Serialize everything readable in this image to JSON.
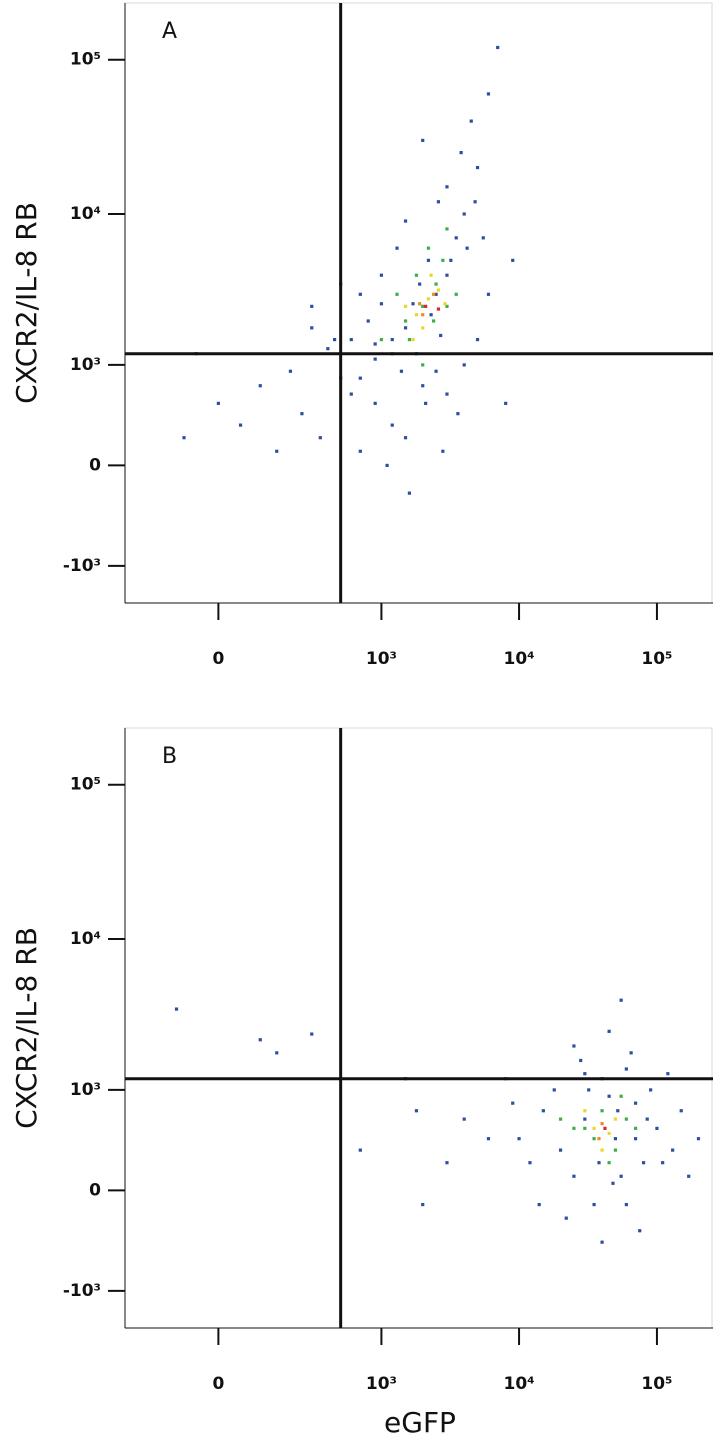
{
  "chart_data": [
    {
      "type": "scatter",
      "title": "A",
      "y_label": "CXCR2/IL-8 RB",
      "scale": "biexponential",
      "xlim": [
        -300,
        255000
      ],
      "ylim": [
        -1800,
        233000
      ],
      "xticks": [
        {
          "value": 0,
          "label": "0"
        },
        {
          "value": 1000,
          "label": "10³"
        },
        {
          "value": 10000,
          "label": "10⁴"
        },
        {
          "value": 100000,
          "label": "10⁵"
        }
      ],
      "yticks": [
        {
          "value": -1000,
          "label": "-10³"
        },
        {
          "value": 0,
          "label": "0"
        },
        {
          "value": 1000,
          "label": "10³"
        },
        {
          "value": 10000,
          "label": "10⁴"
        },
        {
          "value": 100000,
          "label": "10⁵"
        }
      ],
      "gates": {
        "x": 500,
        "y": 1200
      },
      "series": [
        {
          "color": "#2e4f9e",
          "x": [
            1200,
            1500,
            2500,
            3000,
            1800,
            900,
            800,
            2200,
            3500,
            4000,
            3000,
            5000,
            4500,
            6000,
            7000,
            2000,
            1500,
            1000,
            700,
            600,
            700,
            900,
            1200,
            1500,
            2000,
            2500,
            3000,
            4000,
            5000,
            6000,
            8000,
            1100,
            700,
            600,
            400,
            300,
            200,
            100,
            0,
            -50,
            50,
            150,
            250,
            350,
            450,
            -80,
            300,
            500,
            1300,
            2600,
            3800,
            1700,
            2300,
            2700,
            1400,
            900,
            1900,
            3200,
            4200,
            2100,
            1600,
            2800,
            3600,
            5500,
            4800,
            9000,
            1000,
            500
          ],
          "y": [
            1500,
            1800,
            3000,
            4000,
            1200,
            1100,
            2000,
            5000,
            7000,
            10000,
            15000,
            20000,
            40000,
            60000,
            120000,
            30000,
            9000,
            4000,
            3000,
            1500,
            800,
            500,
            300,
            200,
            700,
            900,
            600,
            1000,
            1500,
            3000,
            500,
            0,
            100,
            600,
            1300,
            1800,
            900,
            700,
            500,
            1200,
            300,
            100,
            400,
            200,
            1500,
            200,
            2500,
            3500,
            6000,
            12000,
            25000,
            2600,
            2200,
            1600,
            900,
            1400,
            3500,
            5000,
            6000,
            500,
            -200,
            100,
            400,
            7000,
            12000,
            5000,
            2600,
            800
          ]
        },
        {
          "color": "#3fae49",
          "x": [
            1500,
            2000,
            2500,
            1800,
            1200,
            3000,
            2200,
            1600,
            2800,
            3500,
            1000,
            2000,
            2400,
            3000,
            1300
          ],
          "y": [
            2000,
            2500,
            3500,
            4000,
            1200,
            2500,
            6000,
            1500,
            5000,
            3000,
            1500,
            1000,
            2000,
            8000,
            3000
          ]
        },
        {
          "color": "#e8d82a",
          "x": [
            1800,
            2200,
            2000,
            2600,
            1500,
            2300,
            1700,
            2900
          ],
          "y": [
            2200,
            2800,
            1800,
            3200,
            2500,
            4000,
            1500,
            2600
          ]
        },
        {
          "color": "#f08a1f",
          "x": [
            2000,
            2400,
            1900
          ],
          "y": [
            2200,
            3000,
            2600
          ]
        },
        {
          "color": "#e0262b",
          "x": [
            2100,
            2600
          ],
          "y": [
            2500,
            2400
          ]
        }
      ]
    },
    {
      "type": "scatter",
      "title": "B",
      "y_label": "CXCR2/IL-8 RB",
      "x_label": "eGFP",
      "scale": "biexponential",
      "xlim": [
        -300,
        255000
      ],
      "ylim": [
        -1800,
        233000
      ],
      "xticks": [
        {
          "value": 0,
          "label": "0"
        },
        {
          "value": 1000,
          "label": "10³"
        },
        {
          "value": 10000,
          "label": "10⁴"
        },
        {
          "value": 100000,
          "label": "10⁵"
        }
      ],
      "yticks": [
        {
          "value": -1000,
          "label": "-10³"
        },
        {
          "value": 0,
          "label": "0"
        },
        {
          "value": 1000,
          "label": "10³"
        },
        {
          "value": 10000,
          "label": "10⁴"
        },
        {
          "value": 100000,
          "label": "10⁵"
        }
      ],
      "gates": {
        "x": 500,
        "y": 1200
      },
      "series": [
        {
          "color": "#2e4f9e",
          "x": [
            20000,
            30000,
            50000,
            70000,
            100000,
            15000,
            12000,
            40000,
            60000,
            80000,
            25000,
            35000,
            45000,
            55000,
            90000,
            130000,
            150000,
            10000,
            18000,
            28000,
            65000,
            45000,
            120000,
            22000,
            75000,
            40000,
            14000,
            9000,
            32000,
            52000,
            85000,
            110000,
            200000,
            170000,
            25000,
            60000,
            38000,
            48000,
            30000,
            70000,
            -100,
            100,
            300,
            150,
            1800,
            700,
            1500,
            4000,
            3000,
            2000,
            6000,
            8000,
            55000
          ],
          "y": [
            300,
            600,
            400,
            800,
            500,
            700,
            200,
            1200,
            1400,
            200,
            100,
            -100,
            900,
            100,
            1000,
            300,
            700,
            400,
            1000,
            1600,
            1800,
            2500,
            1300,
            -200,
            -300,
            -400,
            -100,
            800,
            1000,
            700,
            600,
            200,
            400,
            100,
            2000,
            -100,
            200,
            50,
            1300,
            400,
            3500,
            2200,
            2400,
            1800,
            700,
            300,
            1200,
            600,
            200,
            -100,
            400,
            1200,
            4000
          ]
        },
        {
          "color": "#3fae49",
          "x": [
            30000,
            40000,
            50000,
            35000,
            60000,
            25000,
            45000,
            70000,
            20000,
            55000
          ],
          "y": [
            500,
            700,
            300,
            400,
            600,
            500,
            200,
            500,
            600,
            900
          ]
        },
        {
          "color": "#e8d82a",
          "x": [
            35000,
            45000,
            40000,
            30000,
            50000
          ],
          "y": [
            500,
            450,
            300,
            700,
            600
          ]
        },
        {
          "color": "#f08a1f",
          "x": [
            40000,
            38000
          ],
          "y": [
            550,
            400
          ]
        },
        {
          "color": "#e0262b",
          "x": [
            42000
          ],
          "y": [
            500
          ]
        }
      ]
    }
  ]
}
